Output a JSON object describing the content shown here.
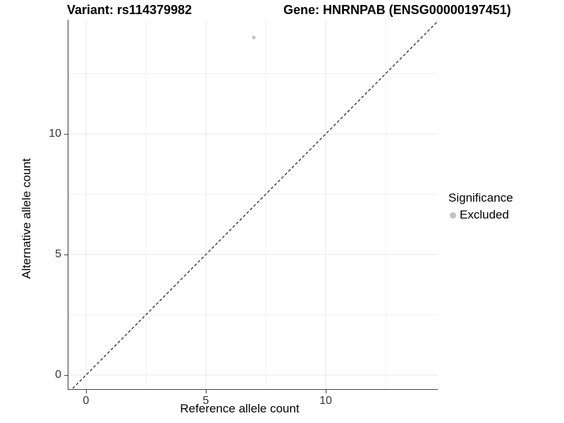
{
  "chart_data": {
    "type": "scatter",
    "titles": [
      "Variant: rs114379982",
      "Gene: HNRNPAB (ENSG00000197451)"
    ],
    "xlabel": "Reference allele count",
    "ylabel": "Alternative allele count",
    "xlim": [
      -0.7,
      14.7
    ],
    "ylim": [
      -0.7,
      14.7
    ],
    "x_ticks": [
      0,
      5,
      10
    ],
    "y_ticks": [
      0,
      5,
      10
    ],
    "x_minor_ticks": [
      2.5,
      7.5,
      12.5
    ],
    "y_minor_ticks": [
      2.5,
      7.5,
      12.5
    ],
    "grid": "major and minor gridlines, very light gray on white background",
    "reference_line": {
      "kind": "identity",
      "equation": "y = x",
      "style": "dashed",
      "color": "#1a1a1a"
    },
    "series": [
      {
        "name": "Excluded",
        "color": "#c2c2c2",
        "points": [
          [
            7,
            14
          ]
        ]
      }
    ],
    "legend": {
      "title": "Significance",
      "position": "right",
      "entries": [
        {
          "label": "Excluded",
          "color": "#c2c2c2"
        }
      ]
    }
  },
  "colors": {
    "background": "#ffffff",
    "axis_line": "#404040",
    "tick_label": "#333333",
    "grid_major": "#e7e7e7",
    "grid_minor": "#f2f2f2",
    "point": "#c2c2c2",
    "ref_line": "#1a1a1a"
  }
}
